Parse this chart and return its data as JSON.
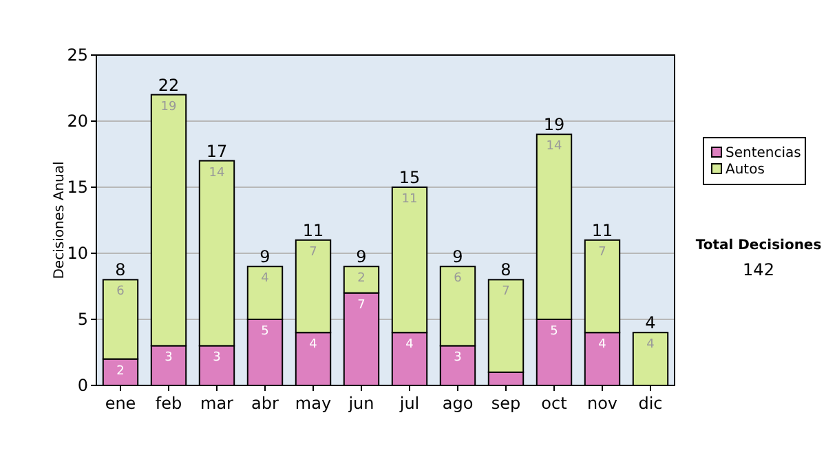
{
  "chart_data": {
    "type": "bar",
    "stacked": true,
    "ylabel": "Decisiones Anual",
    "categories": [
      "ene",
      "feb",
      "mar",
      "abr",
      "may",
      "jun",
      "jul",
      "ago",
      "sep",
      "oct",
      "nov",
      "dic"
    ],
    "series": [
      {
        "name": "Sentencias",
        "color": "#dd80c0",
        "values": [
          2,
          3,
          3,
          5,
          4,
          7,
          4,
          3,
          1,
          5,
          4,
          0
        ],
        "value_labels": [
          "2",
          "3",
          "3",
          "5",
          "4",
          "7",
          "4",
          "3",
          null,
          "5",
          "4",
          null
        ]
      },
      {
        "name": "Autos",
        "color": "#d6eb98",
        "values": [
          6,
          19,
          14,
          4,
          7,
          2,
          11,
          6,
          7,
          14,
          7,
          4
        ],
        "value_labels": [
          "6",
          "19",
          "14",
          "4",
          "7",
          "2",
          "11",
          "6",
          "7",
          "14",
          "7",
          "4"
        ]
      }
    ],
    "totals": [
      "8",
      "22",
      "17",
      "9",
      "11",
      "9",
      "15",
      "9",
      "8",
      "19",
      "11",
      "4"
    ],
    "ylim": [
      0,
      25
    ],
    "yticks": [
      0,
      5,
      10,
      15,
      20,
      25
    ],
    "grid": "y",
    "legend": "right",
    "annotations": [
      "Total Decisiones",
      "142"
    ]
  }
}
